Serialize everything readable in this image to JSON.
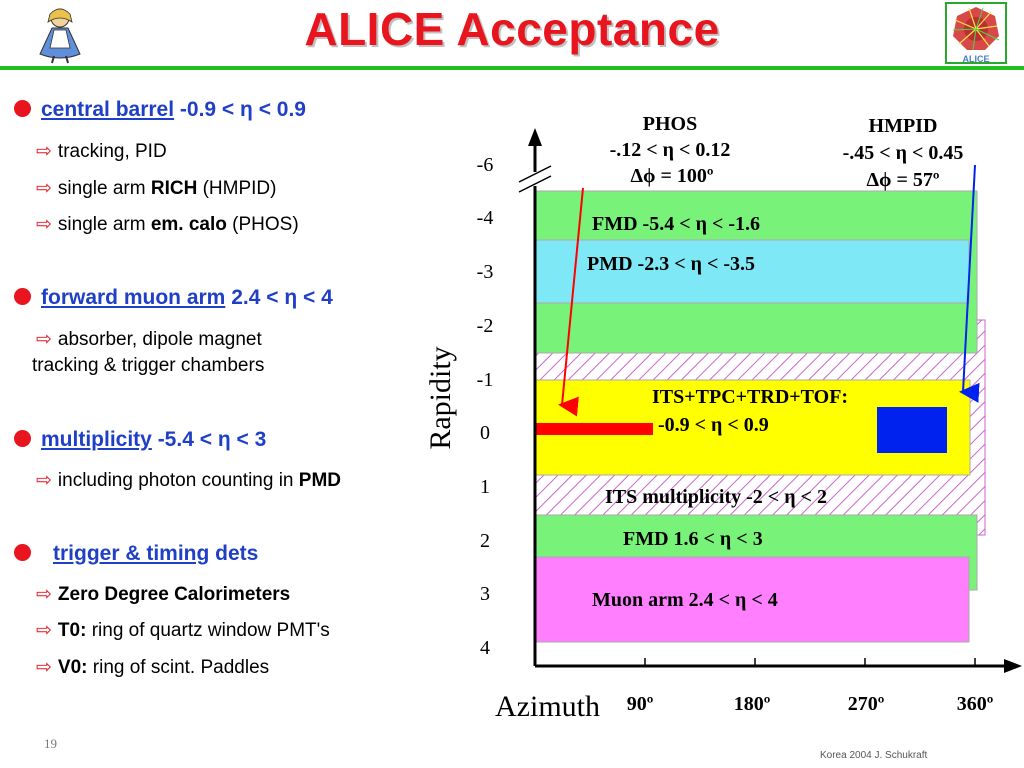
{
  "slide": {
    "title": "ALICE Acceptance",
    "page_number": "19",
    "footer": "Korea 2004  J. Schukraft",
    "logo_right_text": "ALICE"
  },
  "bullets": [
    {
      "link": "central barrel",
      "rest": " -0.9 < η < 0.9",
      "subs": [
        {
          "pre": "tracking, PID",
          "bold": "",
          "post": ""
        },
        {
          "pre": "single arm ",
          "bold": "RICH",
          "post": " (HMPID)"
        },
        {
          "pre": "single arm ",
          "bold": "em. calo",
          "post": " (PHOS)"
        }
      ]
    },
    {
      "link": "forward muon arm",
      "rest": " 2.4 < η < 4",
      "subs": [
        {
          "pre": "absorber, dipole magnet",
          "bold": "",
          "post": ""
        },
        {
          "pre": "tracking & trigger chambers",
          "bold": "",
          "post": ""
        }
      ]
    },
    {
      "link": "multiplicity",
      "rest": " -5.4 < η < 3",
      "subs": [
        {
          "pre": "including photon counting in ",
          "bold": "PMD",
          "post": ""
        }
      ]
    },
    {
      "link": "trigger & timing",
      "rest": " dets",
      "subs": [
        {
          "pre": "",
          "bold": "Zero Degree Calorimeters",
          "post": ""
        },
        {
          "pre": "",
          "bold": "T0:",
          "post": " ring of quartz window PMT's"
        },
        {
          "pre": "",
          "bold": "V0:",
          "post": " ring of  scint. Paddles"
        }
      ]
    }
  ],
  "diagram": {
    "y_axis_label": "Rapidity",
    "x_axis_label": "Azimuth",
    "y_ticks": [
      "-6",
      "-4",
      "-3",
      "-2",
      "-1",
      "0",
      "1",
      "2",
      "3",
      "4"
    ],
    "x_ticks": [
      "90º",
      "180º",
      "270º",
      "360º"
    ],
    "phos": {
      "name": "PHOS",
      "eta": "-.12 < η < 0.12",
      "phi": "Δϕ = 100º"
    },
    "hmpid": {
      "name": "HMPID",
      "eta": "-.45 < η < 0.45",
      "phi": "Δϕ = 57º"
    },
    "bands": {
      "fmd_back": "FMD  -5.4 < η < -1.6",
      "pmd": "PMD  -2.3 < η < -3.5",
      "central": "ITS+TPC+TRD+TOF:",
      "central_eta": "-0.9 < η < 0.9",
      "its_mult": "ITS multiplicity  -2 < η < 2",
      "fmd_fwd": "FMD  1.6 < η < 3",
      "muon": "Muon arm  2.4 < η < 4"
    },
    "colors": {
      "fmd": "#79f279",
      "pmd": "#7fe8f6",
      "central": "#ffff00",
      "muon": "#ff7fff",
      "hatch": "#cc66cc",
      "phos": "#ff0000",
      "hmpid": "#0022ee"
    }
  }
}
